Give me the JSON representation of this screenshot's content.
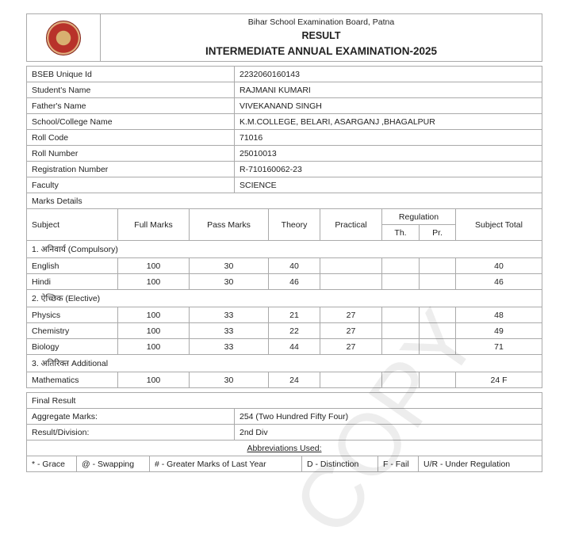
{
  "header": {
    "board": "Bihar School Examination Board, Patna",
    "title": "RESULT",
    "exam": "INTERMEDIATE ANNUAL EXAMINATION-2025"
  },
  "info": [
    {
      "label": "BSEB Unique Id",
      "value": "2232060160143"
    },
    {
      "label": "Student's Name",
      "value": "RAJMANI KUMARI"
    },
    {
      "label": "Father's Name",
      "value": "VIVEKANAND SINGH"
    },
    {
      "label": "School/College Name",
      "value": "K.M.COLLEGE, BELARI, ASARGANJ ,BHAGALPUR"
    },
    {
      "label": "Roll Code",
      "value": "71016"
    },
    {
      "label": "Roll Number",
      "value": "25010013"
    },
    {
      "label": "Registration Number",
      "value": "R-710160062-23"
    },
    {
      "label": "Faculty",
      "value": "SCIENCE"
    }
  ],
  "marks": {
    "title": "Marks Details",
    "columns": {
      "subject": "Subject",
      "full": "Full Marks",
      "pass": "Pass Marks",
      "theory": "Theory",
      "practical": "Practical",
      "regulation": "Regulation",
      "th": "Th.",
      "pr": "Pr.",
      "total": "Subject Total"
    },
    "groups": [
      {
        "name": "1. अनिवार्य (Compulsory)",
        "rows": [
          {
            "subject": "English",
            "full": "100",
            "pass": "30",
            "theory": "40",
            "practical": "",
            "th": "",
            "pr": "",
            "total": "40"
          },
          {
            "subject": "Hindi",
            "full": "100",
            "pass": "30",
            "theory": "46",
            "practical": "",
            "th": "",
            "pr": "",
            "total": "46"
          }
        ]
      },
      {
        "name": "2. ऐच्छिक (Elective)",
        "rows": [
          {
            "subject": "Physics",
            "full": "100",
            "pass": "33",
            "theory": "21",
            "practical": "27",
            "th": "",
            "pr": "",
            "total": "48"
          },
          {
            "subject": "Chemistry",
            "full": "100",
            "pass": "33",
            "theory": "22",
            "practical": "27",
            "th": "",
            "pr": "",
            "total": "49"
          },
          {
            "subject": "Biology",
            "full": "100",
            "pass": "33",
            "theory": "44",
            "practical": "27",
            "th": "",
            "pr": "",
            "total": "71"
          }
        ]
      },
      {
        "name": "3. अतिरिक्त Additional",
        "rows": [
          {
            "subject": "Mathematics",
            "full": "100",
            "pass": "30",
            "theory": "24",
            "practical": "",
            "th": "",
            "pr": "",
            "total": "24 F"
          }
        ]
      }
    ]
  },
  "final": {
    "title": "Final Result",
    "aggregate_label": "Aggregate Marks:",
    "aggregate_value": "254 (Two Hundred Fifty Four)",
    "division_label": "Result/Division:",
    "division_value": "2nd Div"
  },
  "abbreviations": {
    "title": "Abbreviations Used:",
    "items": [
      "* - Grace",
      "@ - Swapping",
      "# - Greater Marks of Last Year",
      "D - Distinction",
      "F - Fail",
      "U/R - Under Regulation"
    ]
  },
  "watermark": "COPY"
}
